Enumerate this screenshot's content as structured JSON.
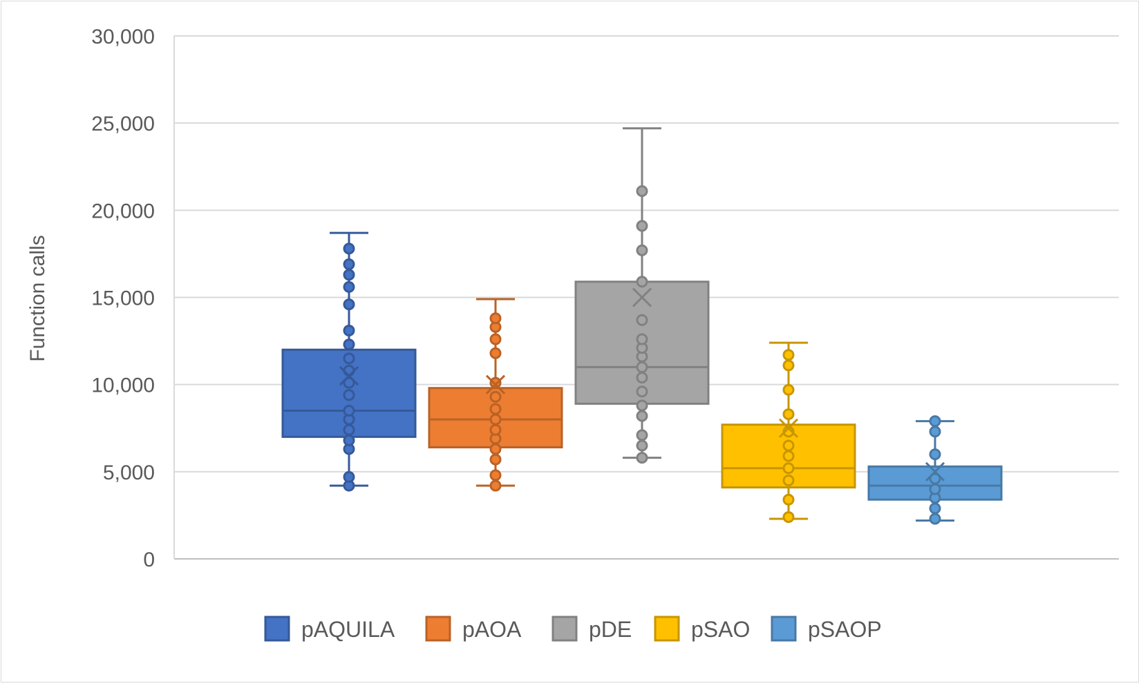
{
  "chart_data": {
    "type": "boxplot",
    "title": "",
    "xlabel": "",
    "ylabel": "Function calls",
    "ylim": [
      0,
      30000
    ],
    "yticks": [
      0,
      5000,
      10000,
      15000,
      20000,
      25000,
      30000
    ],
    "ytick_labels": [
      "0",
      "5,000",
      "10,000",
      "15,000",
      "20,000",
      "25,000",
      "30,000"
    ],
    "grid": "horizontal",
    "legend_position": "bottom",
    "series": [
      {
        "name": "pAQUILA",
        "color": "#4472c4",
        "min": 4200,
        "q1": 7000,
        "median": 8500,
        "q3": 12000,
        "max": 18700,
        "mean": 10500,
        "points": [
          4200,
          4700,
          6300,
          6800,
          7400,
          8000,
          8500,
          9400,
          10100,
          10800,
          11500,
          12300,
          13100,
          14600,
          15600,
          16300,
          16900,
          17800
        ]
      },
      {
        "name": "pAOA",
        "color": "#ed7d31",
        "min": 4200,
        "q1": 6400,
        "median": 8000,
        "q3": 9800,
        "max": 14900,
        "mean": 10000,
        "points": [
          4200,
          4800,
          5700,
          6300,
          6900,
          7400,
          8000,
          8600,
          9300,
          10100,
          11800,
          12600,
          13300,
          13800
        ]
      },
      {
        "name": "pDE",
        "color": "#a5a5a5",
        "min": 5800,
        "q1": 8900,
        "median": 11000,
        "q3": 15900,
        "max": 24700,
        "mean": 15000,
        "points": [
          5800,
          6500,
          7100,
          8200,
          8800,
          9600,
          10400,
          11000,
          11600,
          12100,
          12600,
          13700,
          15900,
          17700,
          19100,
          21100
        ]
      },
      {
        "name": "pSAO",
        "color": "#ffc000",
        "min": 2300,
        "q1": 4100,
        "median": 5200,
        "q3": 7700,
        "max": 12400,
        "mean": 7500,
        "points": [
          2400,
          3400,
          4500,
          5200,
          5900,
          6500,
          7300,
          8300,
          9700,
          11100,
          11700
        ]
      },
      {
        "name": "pSAOP",
        "color": "#5b9bd5",
        "min": 2200,
        "q1": 3400,
        "median": 4200,
        "q3": 5300,
        "max": 7900,
        "mean": 5000,
        "points": [
          2300,
          2900,
          3500,
          4000,
          4600,
          6000,
          7300,
          7900
        ]
      }
    ]
  }
}
